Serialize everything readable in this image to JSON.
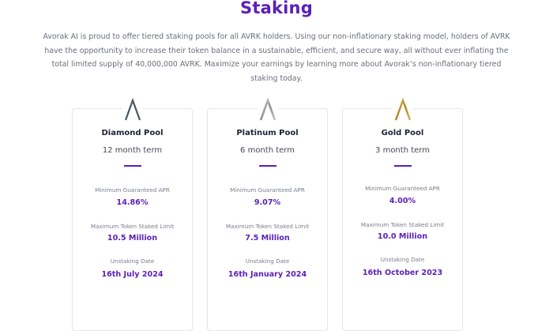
{
  "page": {
    "title": "Staking",
    "intro": "Avorak AI is proud to offer tiered staking pools for all AVRK holders. Using our non-inflationary staking model, holders of AVRK have the opportunity to increase their token balance in a sustainable, efficient, and secure way, all without ever inflating the total limited supply of 40,000,000 AVRK. Maximize your earnings by learning more about Avorak’s non-inflationary tiered staking today."
  },
  "labels": {
    "apr": "Minimum Guaranteed APR",
    "limit": "Maximum Token Staked Limit",
    "unstake": "Unstaking Date"
  },
  "pools": [
    {
      "name": "Diamond Pool",
      "term": "12 month term",
      "apr": "14.86%",
      "limit": "10.5 Million",
      "unstake_date": "16th July 2024",
      "icon": "diamond-chevron-icon",
      "icon_color": "#4a5663"
    },
    {
      "name": "Platinum Pool",
      "term": "6 month term",
      "apr": "9.07%",
      "limit": "7.5 Million",
      "unstake_date": "16th January 2024",
      "icon": "platinum-chevron-icon",
      "icon_color": "#a8a8ae"
    },
    {
      "name": "Gold Pool",
      "term": "3 month term",
      "apr": "4.00%",
      "limit": "10.0 Million",
      "unstake_date": "16th October 2023",
      "icon": "gold-chevron-icon",
      "icon_color": "#c9a23a"
    }
  ],
  "colors": {
    "accent": "#5b1fb8"
  }
}
